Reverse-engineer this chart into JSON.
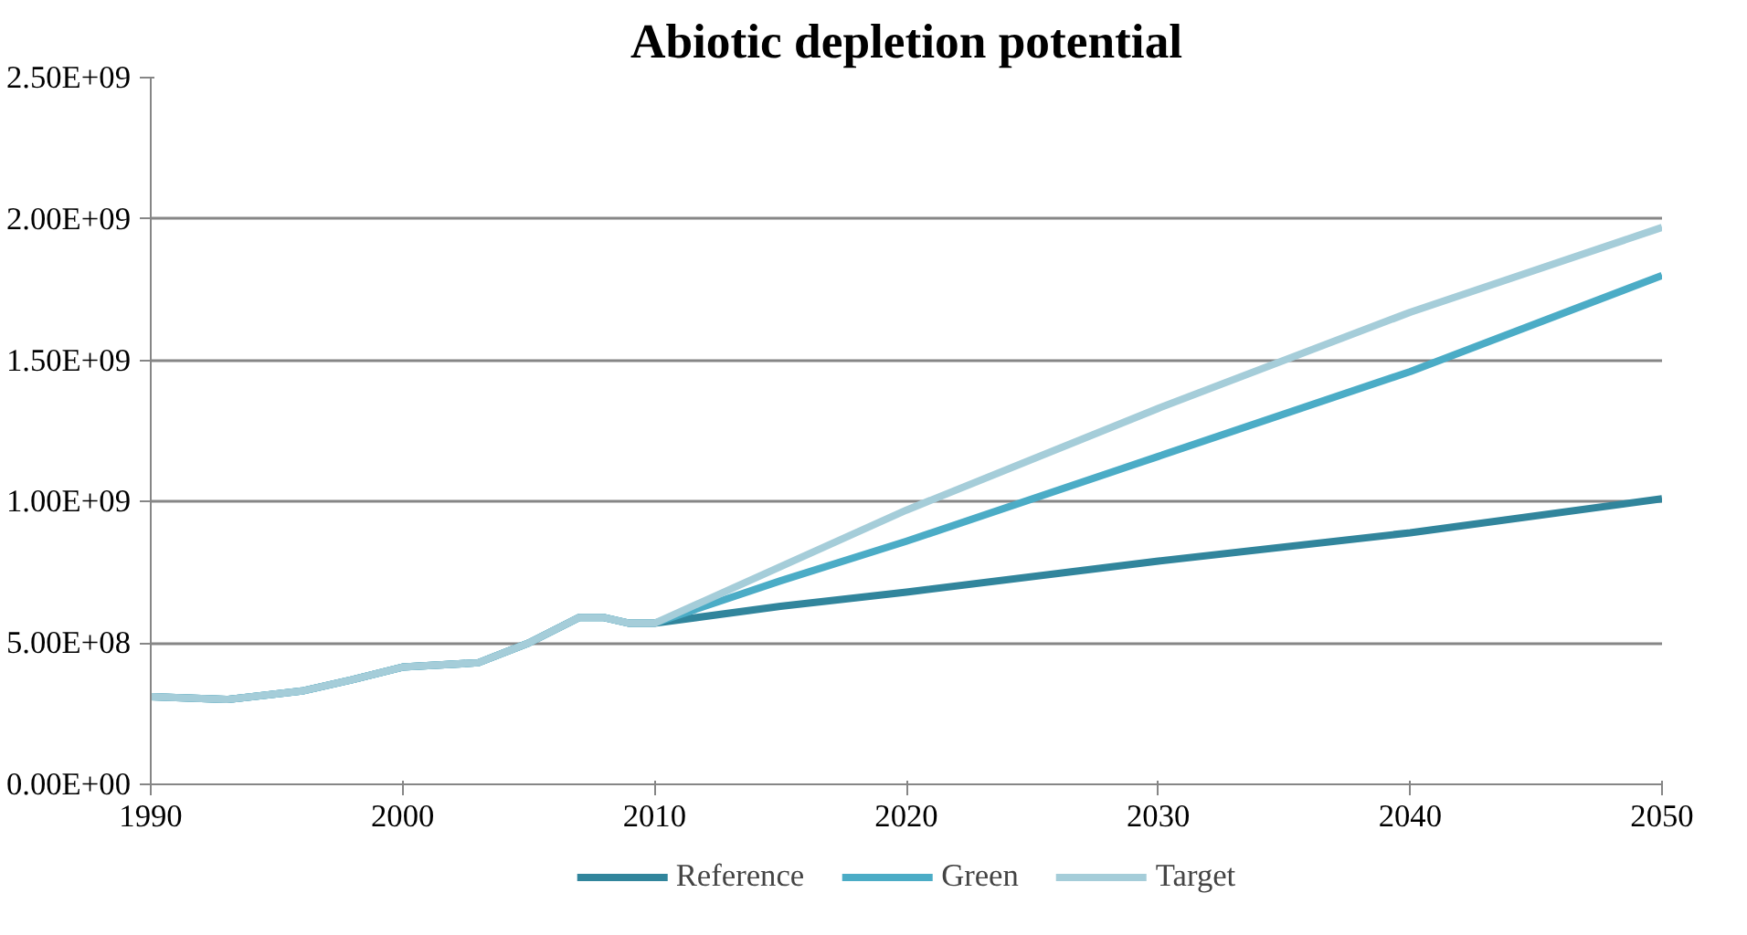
{
  "chart_data": {
    "type": "line",
    "title": "Abiotic depletion potential",
    "x": [
      1990,
      1993,
      1996,
      1998,
      2000,
      2003,
      2005,
      2007,
      2008,
      2009,
      2010,
      2015,
      2020,
      2030,
      2040,
      2050
    ],
    "series": [
      {
        "name": "Reference",
        "color": "#31859c",
        "values": [
          310000000.0,
          300000000.0,
          330000000.0,
          370000000.0,
          415000000.0,
          430000000.0,
          500000000.0,
          590000000.0,
          590000000.0,
          570000000.0,
          570000000.0,
          630000000.0,
          680000000.0,
          790000000.0,
          890000000.0,
          1010000000.0
        ]
      },
      {
        "name": "Green",
        "color": "#4bacc6",
        "values": [
          310000000.0,
          300000000.0,
          330000000.0,
          370000000.0,
          415000000.0,
          430000000.0,
          500000000.0,
          590000000.0,
          590000000.0,
          570000000.0,
          570000000.0,
          720000000.0,
          860000000.0,
          1160000000.0,
          1460000000.0,
          1800000000.0
        ]
      },
      {
        "name": "Target",
        "color": "#a5cdd9",
        "values": [
          310000000.0,
          300000000.0,
          330000000.0,
          370000000.0,
          415000000.0,
          430000000.0,
          500000000.0,
          590000000.0,
          590000000.0,
          570000000.0,
          570000000.0,
          770000000.0,
          970000000.0,
          1330000000.0,
          1670000000.0,
          1970000000.0
        ]
      }
    ],
    "xlim": [
      1990,
      2050
    ],
    "xticks": [
      1990,
      2000,
      2010,
      2020,
      2030,
      2040,
      2050
    ],
    "ylim": [
      0,
      2500000000.0
    ],
    "yticks": [
      {
        "value": 0,
        "label": "0.00E+00"
      },
      {
        "value": 500000000.0,
        "label": "5.00E+08"
      },
      {
        "value": 1000000000.0,
        "label": "1.00E+09"
      },
      {
        "value": 1500000000.0,
        "label": "1.50E+09"
      },
      {
        "value": 2000000000.0,
        "label": "2.00E+09"
      },
      {
        "value": 2500000000.0,
        "label": "2.50E+09"
      }
    ],
    "grid": "y",
    "legend": "bottom",
    "marker": "none",
    "line_style": "solid"
  }
}
